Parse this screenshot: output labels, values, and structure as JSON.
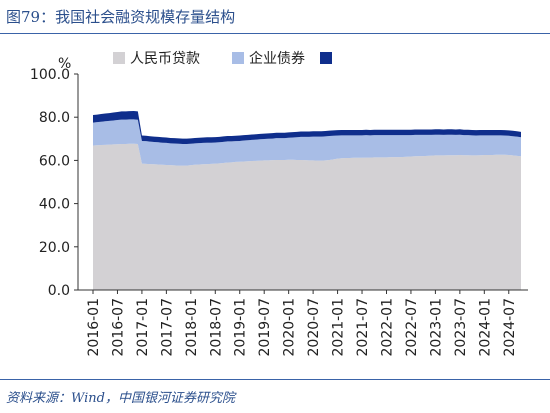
{
  "header": {
    "title": "图79：我国社会融资规模存量结构"
  },
  "footer": {
    "source": "资料来源：Wind，中国银河证券研究院"
  },
  "colors": {
    "loans": "#d3d1d4",
    "bonds": "#a8bde6",
    "other": "#0f2e8c",
    "axis": "#333333",
    "rule": "#3a63a8"
  },
  "chart_data": {
    "type": "area",
    "stacked": true,
    "unit": "%",
    "ylim": [
      0,
      100
    ],
    "yticks": [
      0,
      20,
      40,
      60,
      80,
      100
    ],
    "ytick_labels": [
      "0.0",
      "20.0",
      "40.0",
      "60.0",
      "80.0",
      "100.0"
    ],
    "x": [
      "2016-01",
      "2016-02",
      "2016-03",
      "2016-04",
      "2016-05",
      "2016-06",
      "2016-07",
      "2016-08",
      "2016-09",
      "2016-10",
      "2016-11",
      "2016-12",
      "2017-01",
      "2017-02",
      "2017-03",
      "2017-04",
      "2017-05",
      "2017-06",
      "2017-07",
      "2017-08",
      "2017-09",
      "2017-10",
      "2017-11",
      "2017-12",
      "2018-01",
      "2018-02",
      "2018-03",
      "2018-04",
      "2018-05",
      "2018-06",
      "2018-07",
      "2018-08",
      "2018-09",
      "2018-10",
      "2018-11",
      "2018-12",
      "2019-01",
      "2019-02",
      "2019-03",
      "2019-04",
      "2019-05",
      "2019-06",
      "2019-07",
      "2019-08",
      "2019-09",
      "2019-10",
      "2019-11",
      "2019-12",
      "2020-01",
      "2020-02",
      "2020-03",
      "2020-04",
      "2020-05",
      "2020-06",
      "2020-07",
      "2020-08",
      "2020-09",
      "2020-10",
      "2020-11",
      "2020-12",
      "2021-01",
      "2021-02",
      "2021-03",
      "2021-04",
      "2021-05",
      "2021-06",
      "2021-07",
      "2021-08",
      "2021-09",
      "2021-10",
      "2021-11",
      "2021-12",
      "2022-01",
      "2022-02",
      "2022-03",
      "2022-04",
      "2022-05",
      "2022-06",
      "2022-07",
      "2022-08",
      "2022-09",
      "2022-10",
      "2022-11",
      "2022-12",
      "2023-01",
      "2023-02",
      "2023-03",
      "2023-04",
      "2023-05",
      "2023-06",
      "2023-07",
      "2023-08",
      "2023-09",
      "2023-10",
      "2023-11",
      "2023-12",
      "2024-01",
      "2024-02",
      "2024-03",
      "2024-04",
      "2024-05",
      "2024-06",
      "2024-07",
      "2024-08",
      "2024-09",
      "2024-10"
    ],
    "xtick_labels": [
      "2016-01",
      "2016-07",
      "2017-01",
      "2017-07",
      "2018-01",
      "2018-07",
      "2019-01",
      "2019-07",
      "2020-01",
      "2020-07",
      "2021-01",
      "2021-07",
      "2022-01",
      "2022-07",
      "2023-01",
      "2023-07",
      "2024-01",
      "2024-07"
    ],
    "series": [
      {
        "name": "人民币贷款",
        "values": [
          66.9,
          67.0,
          67.1,
          67.2,
          67.3,
          67.4,
          67.5,
          67.6,
          67.6,
          67.7,
          67.7,
          67.6,
          58.5,
          58.4,
          58.3,
          58.2,
          58.1,
          58.0,
          57.9,
          57.8,
          57.7,
          57.6,
          57.6,
          57.6,
          57.8,
          58.0,
          58.1,
          58.2,
          58.3,
          58.4,
          58.5,
          58.6,
          58.8,
          59.0,
          59.1,
          59.3,
          59.4,
          59.5,
          59.6,
          59.7,
          59.8,
          59.9,
          60.0,
          60.0,
          60.1,
          60.2,
          60.2,
          60.2,
          60.3,
          60.3,
          60.2,
          60.2,
          60.1,
          60.0,
          60.0,
          59.9,
          59.9,
          60.0,
          60.2,
          60.5,
          60.8,
          61.0,
          61.1,
          61.1,
          61.2,
          61.2,
          61.2,
          61.3,
          61.3,
          61.4,
          61.4,
          61.4,
          61.4,
          61.5,
          61.5,
          61.5,
          61.6,
          61.7,
          61.8,
          61.9,
          62.0,
          62.0,
          62.1,
          62.2,
          62.3,
          62.3,
          62.3,
          62.4,
          62.4,
          62.4,
          62.5,
          62.4,
          62.4,
          62.3,
          62.3,
          62.4,
          62.5,
          62.5,
          62.5,
          62.6,
          62.6,
          62.6,
          62.5,
          62.3,
          62.1,
          61.9
        ]
      },
      {
        "name": "企业债券",
        "values": [
          10.6,
          10.7,
          10.8,
          10.9,
          11.0,
          11.1,
          11.2,
          11.3,
          11.3,
          11.3,
          11.3,
          11.2,
          10.5,
          10.5,
          10.4,
          10.3,
          10.3,
          10.2,
          10.2,
          10.1,
          10.1,
          10.1,
          10.0,
          10.0,
          9.9,
          9.9,
          9.9,
          9.9,
          9.9,
          9.8,
          9.8,
          9.8,
          9.8,
          9.8,
          9.7,
          9.6,
          9.6,
          9.7,
          9.7,
          9.8,
          9.8,
          9.9,
          9.9,
          10.0,
          10.0,
          10.1,
          10.1,
          10.1,
          10.2,
          10.3,
          10.5,
          10.7,
          10.8,
          10.9,
          11.0,
          11.1,
          11.1,
          11.1,
          11.1,
          10.9,
          10.7,
          10.6,
          10.5,
          10.5,
          10.4,
          10.4,
          10.4,
          10.4,
          10.3,
          10.3,
          10.3,
          10.3,
          10.3,
          10.2,
          10.2,
          10.2,
          10.1,
          10.0,
          9.9,
          9.9,
          9.8,
          9.8,
          9.7,
          9.6,
          9.6,
          9.6,
          9.5,
          9.5,
          9.5,
          9.4,
          9.4,
          9.3,
          9.3,
          9.3,
          9.2,
          9.2,
          9.1,
          9.1,
          9.1,
          9.0,
          9.0,
          8.9,
          8.9,
          8.9,
          8.9,
          8.8
        ]
      },
      {
        "name": "",
        "values": [
          3.5,
          3.5,
          3.6,
          3.6,
          3.6,
          3.7,
          3.7,
          3.8,
          3.8,
          3.8,
          3.9,
          3.9,
          2.5,
          2.5,
          2.5,
          2.5,
          2.5,
          2.5,
          2.5,
          2.5,
          2.5,
          2.5,
          2.5,
          2.5,
          2.5,
          2.5,
          2.5,
          2.5,
          2.5,
          2.5,
          2.5,
          2.5,
          2.5,
          2.5,
          2.5,
          2.5,
          2.5,
          2.5,
          2.5,
          2.5,
          2.5,
          2.5,
          2.5,
          2.5,
          2.5,
          2.5,
          2.5,
          2.5,
          2.5,
          2.5,
          2.5,
          2.5,
          2.5,
          2.5,
          2.5,
          2.5,
          2.5,
          2.5,
          2.5,
          2.5,
          2.5,
          2.5,
          2.5,
          2.5,
          2.5,
          2.5,
          2.5,
          2.5,
          2.5,
          2.5,
          2.5,
          2.5,
          2.5,
          2.5,
          2.5,
          2.5,
          2.5,
          2.5,
          2.5,
          2.5,
          2.5,
          2.5,
          2.5,
          2.5,
          2.5,
          2.5,
          2.5,
          2.5,
          2.5,
          2.5,
          2.5,
          2.5,
          2.5,
          2.5,
          2.5,
          2.5,
          2.5,
          2.5,
          2.5,
          2.5,
          2.5,
          2.5,
          2.5,
          2.5,
          2.5,
          2.5
        ]
      }
    ]
  }
}
